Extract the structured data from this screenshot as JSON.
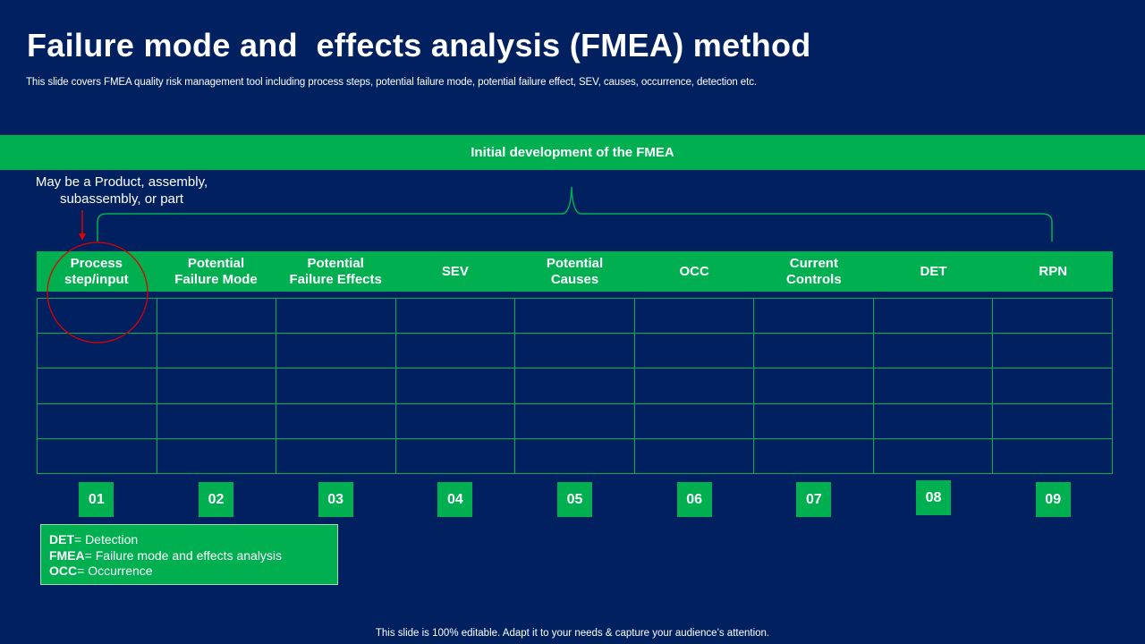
{
  "title": "Failure mode and  effects analysis (FMEA) method",
  "subtitle": "This slide covers FMEA  quality risk management tool including process steps, potential failure mode, potential failure effect, SEV,  causes, occurrence, detection etc.",
  "banner": "Initial development of the FMEA",
  "note": {
    "line1": "May be a Product, assembly,",
    "line2": "subassembly,  or part"
  },
  "table": {
    "headers": [
      {
        "l1": "Process",
        "l2": "step/input"
      },
      {
        "l1": "Potential",
        "l2": "Failure Mode"
      },
      {
        "l1": "Potential",
        "l2": "Failure Effects"
      },
      {
        "l1": "SEV",
        "l2": ""
      },
      {
        "l1": "Potential",
        "l2": "Causes"
      },
      {
        "l1": "OCC",
        "l2": ""
      },
      {
        "l1": "Current",
        "l2": "Controls"
      },
      {
        "l1": "DET",
        "l2": ""
      },
      {
        "l1": "RPN",
        "l2": ""
      }
    ]
  },
  "numbers": [
    "01",
    "02",
    "03",
    "04",
    "05",
    "06",
    "07",
    "08",
    "09"
  ],
  "legend": [
    {
      "term": "DET",
      "def": "= Detection"
    },
    {
      "term": "FMEA",
      "def": "= Failure mode and effects analysis"
    },
    {
      "term": "OCC",
      "def": "= Occurrence"
    }
  ],
  "footer": "This slide is 100% editable. Adapt it to your needs & capture your audience’s attention.",
  "colors": {
    "background": "#002060",
    "accent": "#00B050",
    "highlight": "#E00000"
  }
}
